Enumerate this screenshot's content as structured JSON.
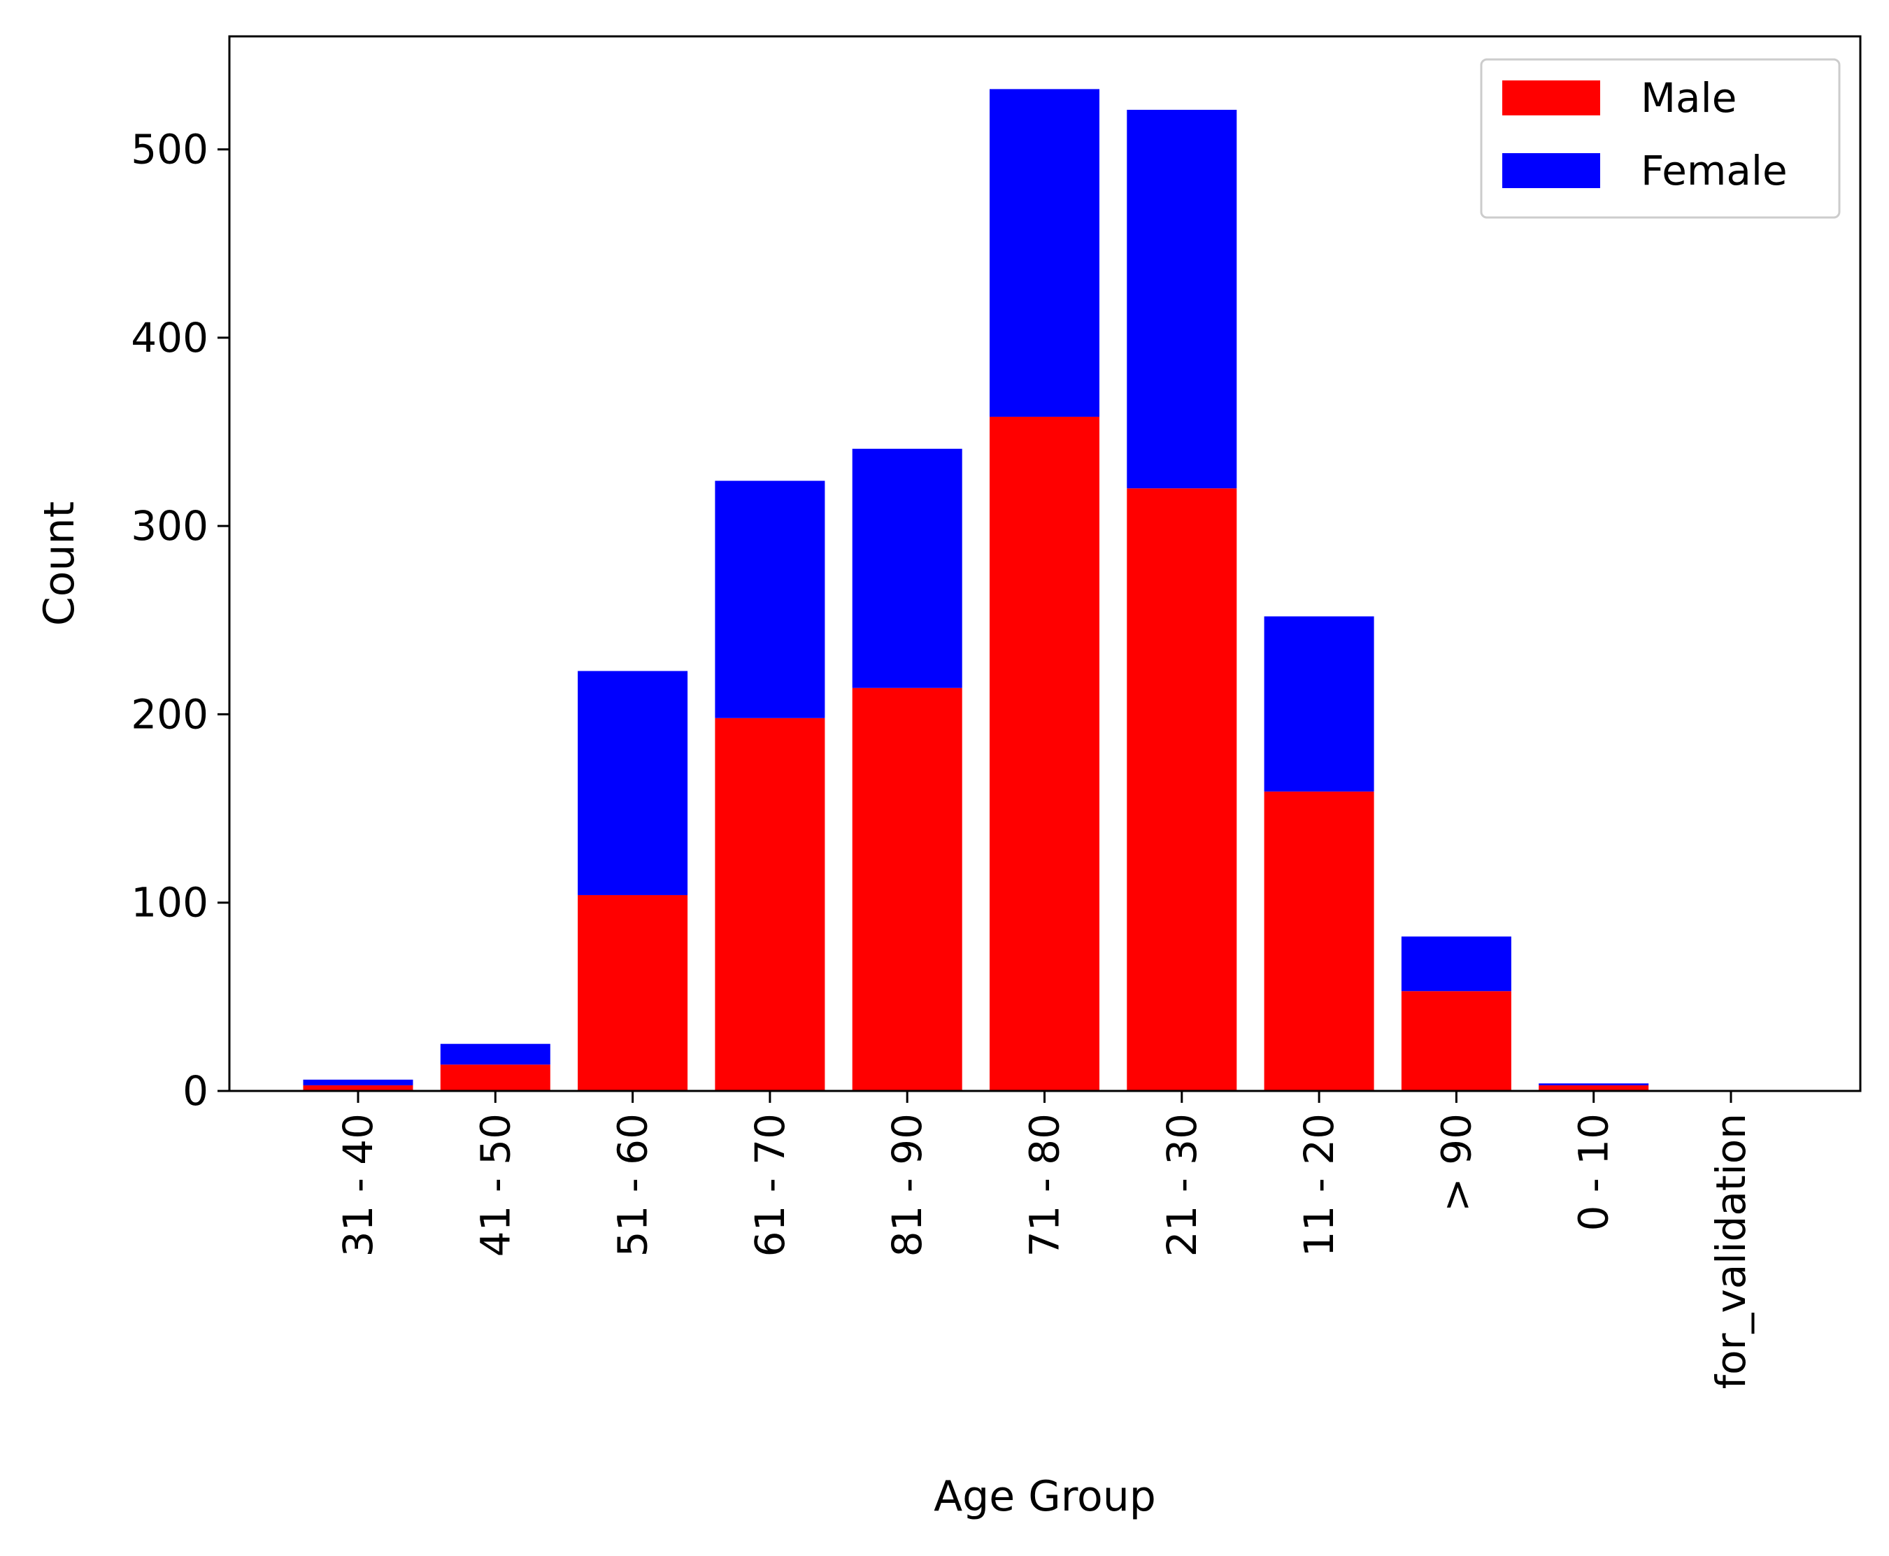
{
  "chart_data": {
    "type": "bar",
    "stacked": true,
    "title": "",
    "xlabel": "Age Group",
    "ylabel": "Count",
    "ylim": [
      0,
      560
    ],
    "yticks": [
      0,
      100,
      200,
      300,
      400,
      500
    ],
    "categories": [
      "31 - 40",
      "41 - 50",
      "51 - 60",
      "61 - 70",
      "81 - 90",
      "71 - 80",
      "21 - 30",
      "11 - 20",
      "> 90",
      "0 - 10",
      "for_validation"
    ],
    "series": [
      {
        "name": "Male",
        "color": "#ff0000",
        "values": [
          3,
          14,
          104,
          198,
          214,
          358,
          320,
          159,
          53,
          3,
          0
        ]
      },
      {
        "name": "Female",
        "color": "#0000ff",
        "values": [
          3,
          11,
          119,
          126,
          127,
          174,
          201,
          93,
          29,
          1,
          0
        ]
      }
    ],
    "legend_position": "top-right",
    "grid": false
  }
}
